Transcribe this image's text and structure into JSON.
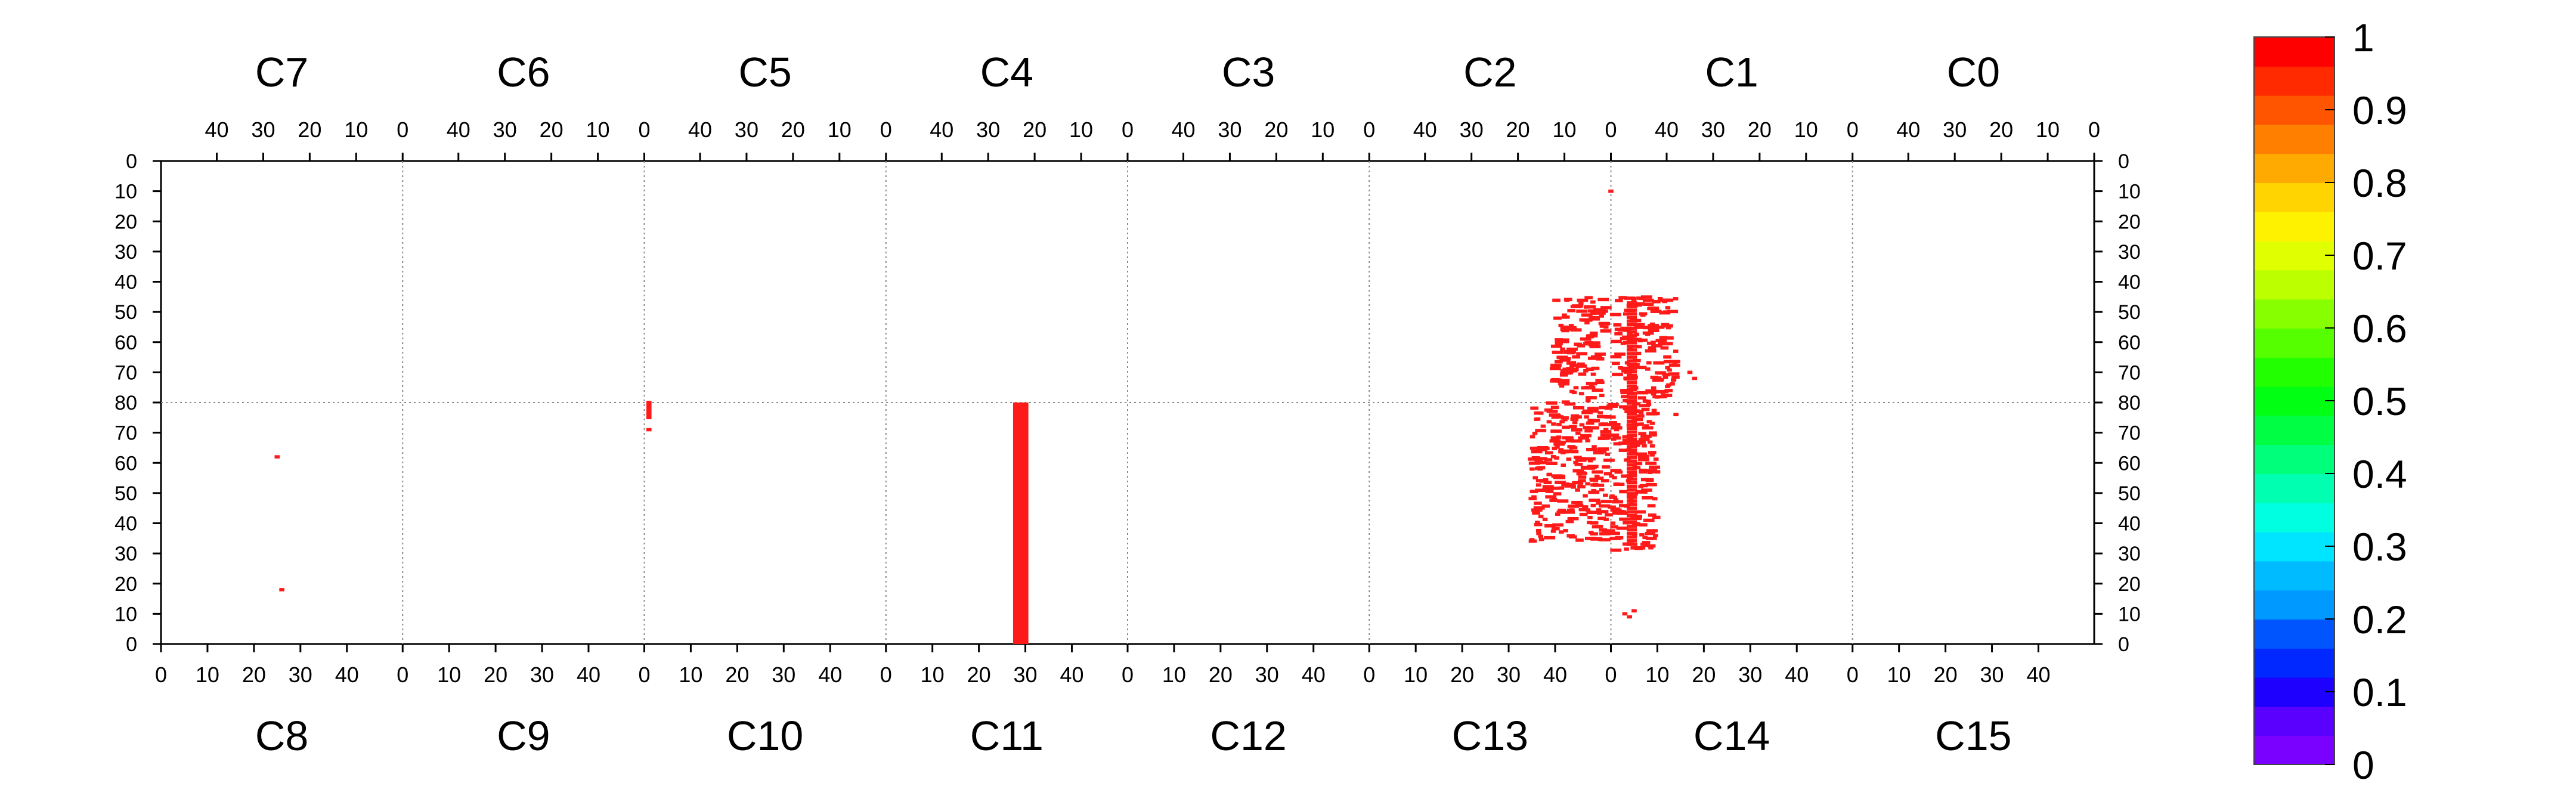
{
  "chart_data": {
    "type": "heatmap",
    "title": "",
    "xlabel": "",
    "ylabel": "",
    "top_chips": [
      "C7",
      "C6",
      "C5",
      "C4",
      "C3",
      "C2",
      "C1",
      "C0"
    ],
    "bottom_chips": [
      "C8",
      "C9",
      "C10",
      "C11",
      "C12",
      "C13",
      "C14",
      "C15"
    ],
    "column_tick_labels_top": [
      "40",
      "30",
      "20",
      "10",
      "0"
    ],
    "column_tick_labels_bottom": [
      "0",
      "10",
      "20",
      "30",
      "40"
    ],
    "row_tick_labels_top_half": [
      "0",
      "10",
      "20",
      "30",
      "40",
      "50",
      "60",
      "70",
      "80"
    ],
    "row_tick_labels_bottom_half": [
      "70",
      "60",
      "50",
      "40",
      "30",
      "20",
      "10",
      "0"
    ],
    "x_range_per_chip": [
      0,
      52
    ],
    "y_range_per_half": [
      0,
      80
    ],
    "grid": true,
    "colorbar": {
      "ticks": [
        "1",
        "0.9",
        "0.8",
        "0.7",
        "0.6",
        "0.5",
        "0.4",
        "0.3",
        "0.2",
        "0.1",
        "0"
      ],
      "range": [
        0,
        1
      ],
      "colors": [
        "#7a00ff",
        "#5a00ff",
        "#1e00ff",
        "#0028ff",
        "#0055ff",
        "#0099ff",
        "#00bbff",
        "#00e5ff",
        "#00ffe0",
        "#00ffb0",
        "#00ff7a",
        "#00ff44",
        "#00ff12",
        "#22ff00",
        "#55ff00",
        "#88ff00",
        "#bbff00",
        "#e0ff00",
        "#fff200",
        "#ffd400",
        "#ffaa00",
        "#ff8000",
        "#ff5500",
        "#ff2a00",
        "#ff0000"
      ]
    },
    "points": [
      {
        "chip": "C8",
        "col": 25,
        "row": 62,
        "value": 1
      },
      {
        "chip": "C8",
        "col": 26,
        "row": 18,
        "value": 1
      },
      {
        "chip": "C9",
        "col": 53,
        "row": 80,
        "value": 1
      },
      {
        "chip": "C9",
        "col": 53,
        "row": 79,
        "value": 1
      },
      {
        "chip": "C9",
        "col": 53,
        "row": 78,
        "value": 1
      },
      {
        "chip": "C9",
        "col": 53,
        "row": 77,
        "value": 1
      },
      {
        "chip": "C9",
        "col": 53,
        "row": 76,
        "value": 1
      },
      {
        "chip": "C9",
        "col": 53,
        "row": 75,
        "value": 1
      },
      {
        "chip": "C9",
        "col": 53,
        "row": 71,
        "value": 1
      }
    ],
    "columns": [
      {
        "chip": "C11",
        "col": 29,
        "row_from": 0,
        "row_to": 80,
        "value": 1
      }
    ],
    "hot_clusters": [
      {
        "chips": [
          "C2",
          "C13",
          "C14"
        ],
        "value": 1,
        "regions": [
          {
            "chip": "C2",
            "col_min": 1,
            "col_max": 12,
            "row_min": 45,
            "row_max": 80
          },
          {
            "chip": "C13",
            "col_min": 35,
            "col_max": 52,
            "row_min": 34,
            "row_max": 80
          },
          {
            "chip": "C1",
            "col_min": 38,
            "col_max": 51,
            "row_min": 45,
            "row_max": 80
          },
          {
            "chip": "C14",
            "col_min": 0,
            "col_max": 10,
            "row_min": 31,
            "row_max": 80
          }
        ]
      },
      {
        "chip": "C2",
        "points": [
          {
            "col": 0,
            "row": 10,
            "value": 1
          }
        ]
      },
      {
        "chip": "C14",
        "points": [
          {
            "col": 3,
            "row": 10,
            "value": 1
          },
          {
            "col": 5,
            "row": 11,
            "value": 1
          },
          {
            "col": 4,
            "row": 9,
            "value": 1
          }
        ]
      },
      {
        "chip": "C1",
        "points": [
          {
            "col": 34,
            "row": 72,
            "value": 1
          },
          {
            "col": 35,
            "row": 70,
            "value": 1
          }
        ]
      },
      {
        "chip": "C14",
        "points": [
          {
            "col": 14,
            "row": 76,
            "value": 1
          }
        ]
      }
    ]
  }
}
